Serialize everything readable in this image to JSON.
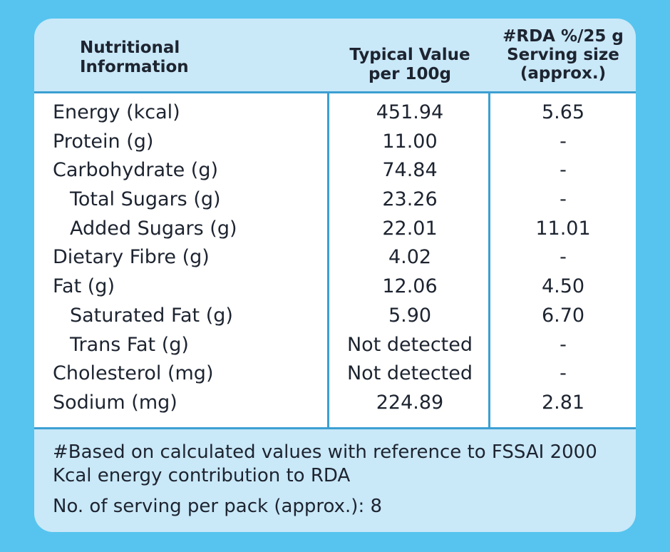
{
  "header": {
    "col1_line1": "Nutritional",
    "col1_line2": "Information",
    "col2_line1": "Typical Value",
    "col2_line2": "per 100g",
    "col3_line1": "#RDA %/25 g",
    "col3_line2": "Serving size",
    "col3_line3": "(approx.)"
  },
  "rows": [
    {
      "name": "Energy (kcal)",
      "value": "451.94",
      "rda": "5.65"
    },
    {
      "name": "Protein (g)",
      "value": "11.00",
      "rda": "-"
    },
    {
      "name": "Carbohydrate (g)",
      "value": "74.84",
      "rda": "-"
    },
    {
      "name": "Total Sugars (g)",
      "value": "23.26",
      "rda": "-"
    },
    {
      "name": "Added Sugars (g)",
      "value": "22.01",
      "rda": "11.01"
    },
    {
      "name": "Dietary Fibre (g)",
      "value": "4.02",
      "rda": "-"
    },
    {
      "name": "Fat (g)",
      "value": "12.06",
      "rda": "4.50"
    },
    {
      "name": "Saturated Fat (g)",
      "value": "5.90",
      "rda": "6.70"
    },
    {
      "name": "Trans Fat (g)",
      "value": "Not detected",
      "rda": "-"
    },
    {
      "name": "Cholesterol (mg)",
      "value": "Not detected",
      "rda": "-"
    },
    {
      "name": "Sodium (mg)",
      "value": "224.89",
      "rda": "2.81"
    }
  ],
  "footer": {
    "note_line1": "#Based on calculated values with reference to FSSAI 2000",
    "note_line2": "Kcal energy contribution to RDA",
    "servings": "No. of serving per pack (approx.): 8"
  },
  "colors": {
    "background": "#56c4ef",
    "panel": "#c9e8f8",
    "rule": "#3b9fd3",
    "text": "#1d2430"
  }
}
